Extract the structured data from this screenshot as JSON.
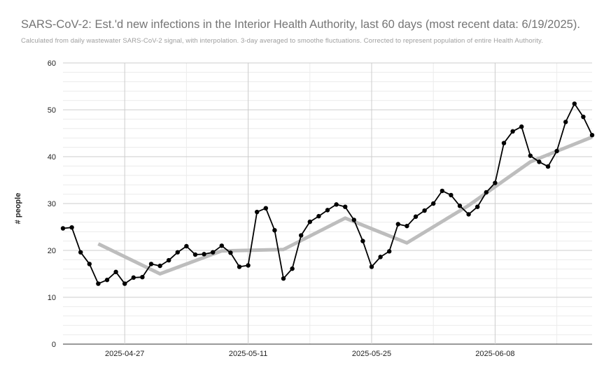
{
  "chart_data": {
    "type": "line",
    "title": "SARS-CoV-2: Est.'d new infections in the Interior Health Authority, last 60 days (most recent data: 6/19/2025).",
    "subtitle": "Calculated from daily wastewater SARS-CoV-2 signal, with interpolation. 3-day averaged to smoothe fluctuations. Corrected to represent population of entire Health Authority.",
    "xlabel": "",
    "ylabel": "# people",
    "ylim": [
      0,
      60
    ],
    "yticks": [
      0,
      10,
      20,
      30,
      40,
      50,
      60
    ],
    "xlim": [
      "2025-04-20",
      "2025-06-19"
    ],
    "xticks": [
      "2025-04-27",
      "2025-05-11",
      "2025-05-25",
      "2025-06-08"
    ],
    "grid": true,
    "legend": "none",
    "series": [
      {
        "name": "",
        "color": "#000000",
        "marker": "circle",
        "x": [
          "2025-04-20",
          "2025-04-21",
          "2025-04-22",
          "2025-04-23",
          "2025-04-24",
          "2025-04-25",
          "2025-04-26",
          "2025-04-27",
          "2025-04-28",
          "2025-04-29",
          "2025-04-30",
          "2025-05-01",
          "2025-05-02",
          "2025-05-03",
          "2025-05-04",
          "2025-05-05",
          "2025-05-06",
          "2025-05-07",
          "2025-05-08",
          "2025-05-09",
          "2025-05-10",
          "2025-05-11",
          "2025-05-12",
          "2025-05-13",
          "2025-05-14",
          "2025-05-15",
          "2025-05-16",
          "2025-05-17",
          "2025-05-18",
          "2025-05-19",
          "2025-05-20",
          "2025-05-21",
          "2025-05-22",
          "2025-05-23",
          "2025-05-24",
          "2025-05-25",
          "2025-05-26",
          "2025-05-27",
          "2025-05-28",
          "2025-05-29",
          "2025-05-30",
          "2025-05-31",
          "2025-06-01",
          "2025-06-02",
          "2025-06-03",
          "2025-06-04",
          "2025-06-05",
          "2025-06-06",
          "2025-06-07",
          "2025-06-08",
          "2025-06-09",
          "2025-06-10",
          "2025-06-11",
          "2025-06-12",
          "2025-06-13",
          "2025-06-14",
          "2025-06-15",
          "2025-06-16",
          "2025-06-17",
          "2025-06-18",
          "2025-06-19"
        ],
        "values": [
          24.7,
          24.9,
          19.6,
          17.1,
          12.9,
          13.7,
          15.4,
          12.9,
          14.2,
          14.3,
          17.1,
          16.7,
          17.9,
          19.6,
          20.9,
          19.1,
          19.2,
          19.6,
          21.0,
          19.5,
          16.5,
          16.8,
          28.2,
          29.0,
          24.3,
          14.0,
          16.1,
          23.2,
          26.1,
          27.3,
          28.6,
          29.8,
          29.3,
          26.5,
          22.0,
          16.5,
          18.6,
          19.8,
          25.6,
          25.2,
          27.2,
          28.5,
          30.0,
          32.7,
          31.8,
          29.5,
          27.7,
          29.3,
          32.4,
          34.4,
          42.9,
          45.4,
          46.4,
          40.2,
          38.9,
          37.9,
          41.2,
          47.4,
          51.3,
          48.5,
          44.6
        ]
      },
      {
        "name": "",
        "color": "#bdbdbd",
        "marker": "none",
        "x": [
          "2025-04-24",
          "2025-05-01",
          "2025-05-08",
          "2025-05-15",
          "2025-05-22",
          "2025-05-29",
          "2025-06-05",
          "2025-06-12",
          "2025-06-19"
        ],
        "values": [
          21.4,
          15.0,
          19.9,
          20.2,
          26.9,
          21.6,
          29.6,
          38.9,
          44.2
        ]
      }
    ]
  }
}
